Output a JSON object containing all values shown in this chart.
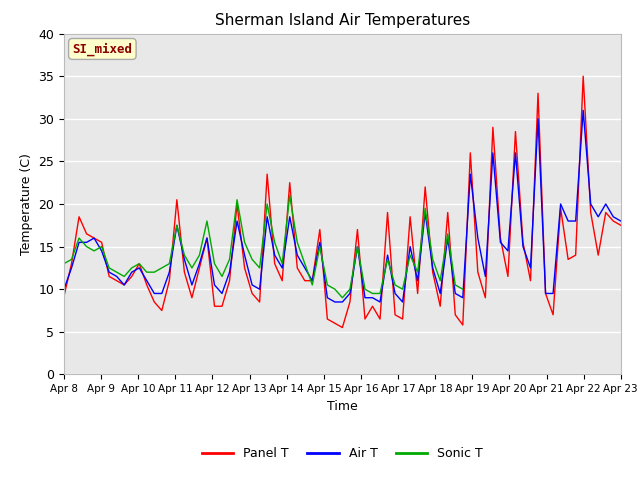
{
  "title": "Sherman Island Air Temperatures",
  "xlabel": "Time",
  "ylabel": "Temperature (C)",
  "ylim": [
    0,
    40
  ],
  "yticks": [
    0,
    5,
    10,
    15,
    20,
    25,
    30,
    35,
    40
  ],
  "bg_color": "#e8e8e8",
  "annotation_text": "SI_mixed",
  "annotation_color": "#8b0000",
  "annotation_bg": "#ffffcc",
  "line_colors": {
    "panel": "#ff0000",
    "air": "#0000ff",
    "sonic": "#00aa00"
  },
  "legend_labels": [
    "Panel T",
    "Air T",
    "Sonic T"
  ],
  "x_tick_labels": [
    "Apr 8",
    "Apr 9",
    "Apr 10",
    "Apr 11",
    "Apr 12",
    "Apr 13",
    "Apr 14",
    "Apr 15",
    "Apr 16",
    "Apr 17",
    "Apr 18",
    "Apr 19",
    "Apr 20",
    "Apr 21",
    "Apr 22",
    "Apr 23"
  ],
  "panel_t": [
    9.2,
    13.0,
    18.5,
    16.5,
    16.0,
    15.5,
    11.5,
    11.0,
    10.5,
    11.5,
    13.0,
    10.5,
    8.5,
    7.5,
    11.0,
    20.5,
    12.0,
    9.0,
    12.5,
    16.0,
    8.0,
    8.0,
    11.0,
    20.0,
    12.5,
    9.5,
    8.5,
    23.5,
    13.0,
    11.0,
    22.5,
    12.5,
    11.0,
    11.0,
    17.0,
    6.5,
    6.0,
    5.5,
    8.5,
    17.0,
    6.5,
    8.0,
    6.5,
    19.0,
    7.0,
    6.5,
    18.5,
    9.5,
    22.0,
    12.0,
    8.0,
    19.0,
    7.0,
    5.8,
    26.0,
    12.0,
    9.0,
    29.0,
    16.0,
    11.5,
    28.5,
    15.5,
    11.0,
    33.0,
    9.5,
    7.0,
    19.5,
    13.5,
    14.0,
    35.0,
    19.0,
    14.0,
    19.0,
    18.0,
    17.5
  ],
  "air_t": [
    10.0,
    12.5,
    15.5,
    15.5,
    16.0,
    14.5,
    12.0,
    11.5,
    10.5,
    12.0,
    12.5,
    11.0,
    9.5,
    9.5,
    12.0,
    17.5,
    13.5,
    10.5,
    13.0,
    16.0,
    10.5,
    9.5,
    12.0,
    18.0,
    14.0,
    10.5,
    10.0,
    18.5,
    14.0,
    12.5,
    18.5,
    14.0,
    12.5,
    11.0,
    15.5,
    9.0,
    8.5,
    8.5,
    9.5,
    15.0,
    9.0,
    9.0,
    8.5,
    14.0,
    9.5,
    8.5,
    15.0,
    11.0,
    19.0,
    12.5,
    9.5,
    16.0,
    9.5,
    9.0,
    23.5,
    16.0,
    11.5,
    26.0,
    15.5,
    14.5,
    26.0,
    15.0,
    12.5,
    30.0,
    9.5,
    9.5,
    20.0,
    18.0,
    18.0,
    31.0,
    20.0,
    18.5,
    20.0,
    18.5,
    18.0
  ],
  "sonic_t": [
    13.0,
    13.5,
    16.0,
    15.0,
    14.5,
    15.0,
    12.5,
    12.0,
    11.5,
    12.5,
    13.0,
    12.0,
    12.0,
    12.5,
    13.0,
    17.5,
    14.0,
    12.5,
    14.0,
    18.0,
    13.0,
    11.5,
    13.5,
    20.5,
    15.5,
    13.5,
    12.5,
    20.0,
    15.5,
    13.0,
    21.0,
    15.5,
    13.0,
    10.5,
    15.0,
    10.5,
    10.0,
    9.0,
    10.0,
    15.0,
    10.0,
    9.5,
    9.5,
    13.5,
    10.5,
    10.0,
    14.0,
    12.0,
    19.5,
    13.5,
    11.0,
    16.5,
    10.5,
    10.0,
    null,
    null,
    null,
    null,
    null,
    null,
    null,
    null,
    null,
    null,
    null,
    null,
    null,
    null,
    null,
    null,
    null,
    null,
    null,
    null,
    null
  ]
}
